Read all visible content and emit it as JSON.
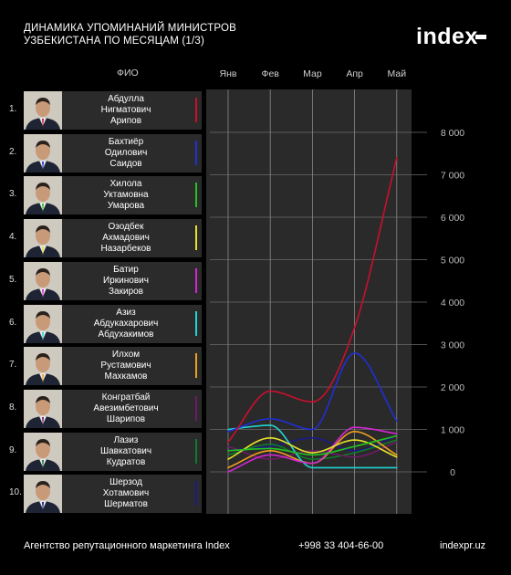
{
  "header": {
    "title_line1": "ДИНАМИКА УПОМИНАНИЙ МИНИСТРОВ",
    "title_line2": "УЗБЕКИСТАНА ПО МЕСЯЦАМ (1/3)",
    "logo": "index"
  },
  "table": {
    "header": "ФИО"
  },
  "footer": {
    "agency": "Агентство репутационного маркетинга Index",
    "phone": "+998 33 404-66-00",
    "website": "indexpr.uz"
  },
  "chart_data": {
    "type": "line",
    "title": "ДИНАМИКА УПОМИНАНИЙ МИНИСТРОВ УЗБЕКИСТАНА ПО МЕСЯЦАМ (1/3)",
    "categories": [
      "Янв",
      "Фев",
      "Мар",
      "Апр",
      "Май"
    ],
    "y_ticks": [
      "0",
      "1 000",
      "2 000",
      "3 000",
      "4 000",
      "5 000",
      "6 000",
      "7 000",
      "8 000"
    ],
    "ylim": [
      0,
      8000
    ],
    "grid": true,
    "y_axis_side": "right",
    "series": [
      {
        "rank": "1.",
        "name": [
          "Абдулла",
          "Нигматович",
          "Арипов"
        ],
        "color": "#c8102e",
        "values": [
          700,
          1900,
          1650,
          3400,
          7400
        ]
      },
      {
        "rank": "2.",
        "name": [
          "Бахтиёр",
          "Одилович",
          "Саидов"
        ],
        "color": "#1f2fd6",
        "values": [
          950,
          1250,
          1000,
          2800,
          1200
        ]
      },
      {
        "rank": "3.",
        "name": [
          "Хилола",
          "Уктамовна",
          "Умарова"
        ],
        "color": "#22c322",
        "values": [
          500,
          550,
          400,
          600,
          850
        ]
      },
      {
        "rank": "4.",
        "name": [
          "Озодбек",
          "Ахмадович",
          "Назарбеков"
        ],
        "color": "#e6e22a",
        "values": [
          300,
          800,
          450,
          750,
          350
        ]
      },
      {
        "rank": "5.",
        "name": [
          "Батир",
          "Иркинович",
          "Закиров"
        ],
        "color": "#d326d3",
        "values": [
          0,
          400,
          200,
          1050,
          900
        ]
      },
      {
        "rank": "6.",
        "name": [
          "Азиз",
          "Абдукахарович",
          "Абдухакимов"
        ],
        "color": "#22d3d3",
        "values": [
          1000,
          1100,
          100,
          100,
          100
        ]
      },
      {
        "rank": "7.",
        "name": [
          "Илхом",
          "Рустамович",
          "Махкамов"
        ],
        "color": "#f0a020",
        "values": [
          100,
          500,
          200,
          950,
          400
        ]
      },
      {
        "rank": "8.",
        "name": [
          "Конгратбай",
          "Авезимбетович",
          "Шарипов"
        ],
        "color": "#6e1a66",
        "values": [
          600,
          300,
          500,
          350,
          700
        ]
      },
      {
        "rank": "9.",
        "name": [
          "Лазиз",
          "Шавкатович",
          "Кудратов"
        ],
        "color": "#0f7a2a",
        "values": [
          400,
          650,
          300,
          450,
          750
        ]
      },
      {
        "rank": "10.",
        "name": [
          "Шерзод",
          "Хотамович",
          "Шерматов"
        ],
        "color": "#1a1a8c",
        "values": [
          500,
          600,
          800,
          500,
          850
        ]
      }
    ]
  }
}
